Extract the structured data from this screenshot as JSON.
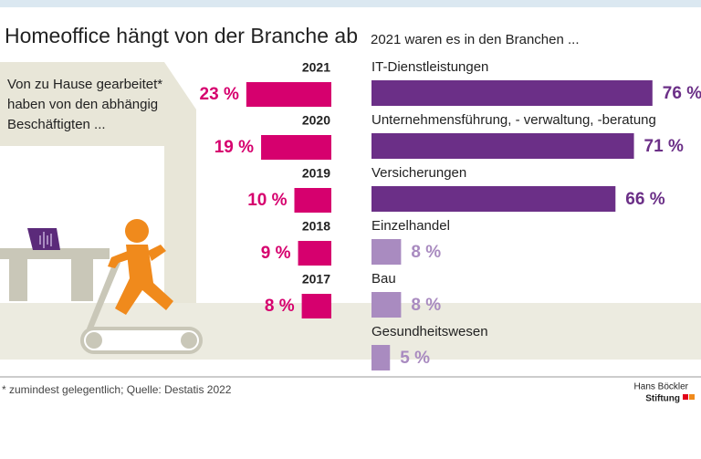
{
  "title": "Homeoffice hängt von der Branche ab",
  "chart_data": [
    {
      "type": "bar",
      "subtitle": "Von zu Hause gearbeitet* haben von den abhängig Beschäftigten ...",
      "categories": [
        "2021",
        "2020",
        "2019",
        "2018",
        "2017"
      ],
      "values": [
        23,
        19,
        10,
        9,
        8
      ],
      "value_labels": [
        "23 %",
        "19 %",
        "10 %",
        "9 %",
        "8 %"
      ],
      "color": "#d6006e"
    },
    {
      "type": "bar",
      "subtitle": "2021 waren es in den Branchen ...",
      "categories": [
        "IT-Dienstleistungen",
        "Unternehmensführung, - verwaltung, -beratung",
        "Versicherungen",
        "Einzelhandel",
        "Bau",
        "Gesundheitswesen"
      ],
      "values": [
        76,
        71,
        66,
        8,
        8,
        5
      ],
      "value_labels": [
        "76 %",
        "71 %",
        "66 %",
        "8 %",
        "8 %",
        "5 %"
      ],
      "colors": [
        "#6b2f87",
        "#6b2f87",
        "#6b2f87",
        "#a98bc0",
        "#a98bc0",
        "#a98bc0"
      ]
    }
  ],
  "footnote": "* zumindest gelegentlich; Quelle: Destatis 2022",
  "logo": [
    "Hans Böckler",
    "Stiftung"
  ]
}
